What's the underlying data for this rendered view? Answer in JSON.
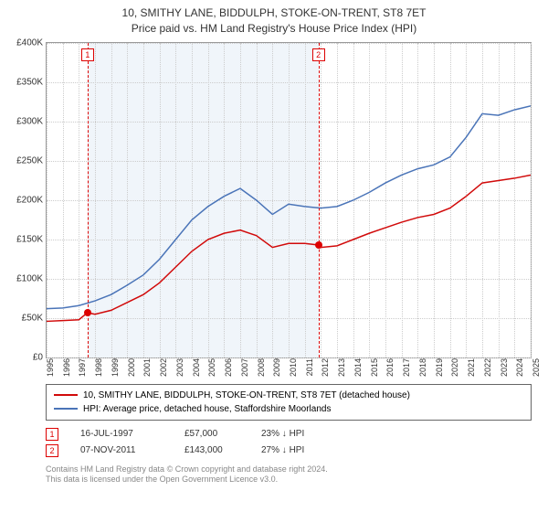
{
  "title": {
    "line1": "10, SMITHY LANE, BIDDULPH, STOKE-ON-TRENT, ST8 7ET",
    "line2": "Price paid vs. HM Land Registry's House Price Index (HPI)"
  },
  "chart": {
    "type": "line",
    "background_color": "#ffffff",
    "grid_color": "#cccccc",
    "border_color": "#999999",
    "band_color": "#e6eef7",
    "x": {
      "min": 1995,
      "max": 2025,
      "ticks": [
        1995,
        1996,
        1997,
        1998,
        1999,
        2000,
        2001,
        2002,
        2003,
        2004,
        2005,
        2006,
        2007,
        2008,
        2009,
        2010,
        2011,
        2012,
        2013,
        2014,
        2015,
        2016,
        2017,
        2018,
        2019,
        2020,
        2021,
        2022,
        2023,
        2024,
        2025
      ]
    },
    "y": {
      "min": 0,
      "max": 400000,
      "tick_step": 50000,
      "labels": [
        "£0",
        "£50K",
        "£100K",
        "£150K",
        "£200K",
        "£250K",
        "£300K",
        "£350K",
        "£400K"
      ]
    },
    "band": {
      "from": 1997.54,
      "to": 2011.85
    },
    "series": [
      {
        "name": "property",
        "color": "#d10a0a",
        "width": 1.5,
        "points": [
          [
            1995,
            46000
          ],
          [
            1996,
            47000
          ],
          [
            1997,
            48000
          ],
          [
            1997.54,
            57000
          ],
          [
            1998,
            55000
          ],
          [
            1999,
            60000
          ],
          [
            2000,
            70000
          ],
          [
            2001,
            80000
          ],
          [
            2002,
            95000
          ],
          [
            2003,
            115000
          ],
          [
            2004,
            135000
          ],
          [
            2005,
            150000
          ],
          [
            2006,
            158000
          ],
          [
            2007,
            162000
          ],
          [
            2008,
            155000
          ],
          [
            2009,
            140000
          ],
          [
            2010,
            145000
          ],
          [
            2011,
            145000
          ],
          [
            2011.85,
            143000
          ],
          [
            2012,
            140000
          ],
          [
            2013,
            142000
          ],
          [
            2014,
            150000
          ],
          [
            2015,
            158000
          ],
          [
            2016,
            165000
          ],
          [
            2017,
            172000
          ],
          [
            2018,
            178000
          ],
          [
            2019,
            182000
          ],
          [
            2020,
            190000
          ],
          [
            2021,
            205000
          ],
          [
            2022,
            222000
          ],
          [
            2023,
            225000
          ],
          [
            2024,
            228000
          ],
          [
            2025,
            232000
          ]
        ]
      },
      {
        "name": "hpi",
        "color": "#4a74b8",
        "width": 1.5,
        "points": [
          [
            1995,
            62000
          ],
          [
            1996,
            63000
          ],
          [
            1997,
            66000
          ],
          [
            1998,
            72000
          ],
          [
            1999,
            80000
          ],
          [
            2000,
            92000
          ],
          [
            2001,
            105000
          ],
          [
            2002,
            125000
          ],
          [
            2003,
            150000
          ],
          [
            2004,
            175000
          ],
          [
            2005,
            192000
          ],
          [
            2006,
            205000
          ],
          [
            2007,
            215000
          ],
          [
            2008,
            200000
          ],
          [
            2009,
            182000
          ],
          [
            2010,
            195000
          ],
          [
            2011,
            192000
          ],
          [
            2012,
            190000
          ],
          [
            2013,
            192000
          ],
          [
            2014,
            200000
          ],
          [
            2015,
            210000
          ],
          [
            2016,
            222000
          ],
          [
            2017,
            232000
          ],
          [
            2018,
            240000
          ],
          [
            2019,
            245000
          ],
          [
            2020,
            255000
          ],
          [
            2021,
            280000
          ],
          [
            2022,
            310000
          ],
          [
            2023,
            308000
          ],
          [
            2024,
            315000
          ],
          [
            2025,
            320000
          ]
        ]
      }
    ],
    "markers": [
      {
        "n": "1",
        "x": 1997.54,
        "y": 57000
      },
      {
        "n": "2",
        "x": 2011.85,
        "y": 143000
      }
    ]
  },
  "legend": {
    "items": [
      {
        "color": "#d10a0a",
        "label": "10, SMITHY LANE, BIDDULPH, STOKE-ON-TRENT, ST8 7ET (detached house)"
      },
      {
        "color": "#4a74b8",
        "label": "HPI: Average price, detached house, Staffordshire Moorlands"
      }
    ]
  },
  "sales": [
    {
      "n": "1",
      "date": "16-JUL-1997",
      "price": "£57,000",
      "delta": "23% ↓ HPI"
    },
    {
      "n": "2",
      "date": "07-NOV-2011",
      "price": "£143,000",
      "delta": "27% ↓ HPI"
    }
  ],
  "footer": {
    "line1": "Contains HM Land Registry data © Crown copyright and database right 2024.",
    "line2": "This data is licensed under the Open Government Licence v3.0."
  }
}
